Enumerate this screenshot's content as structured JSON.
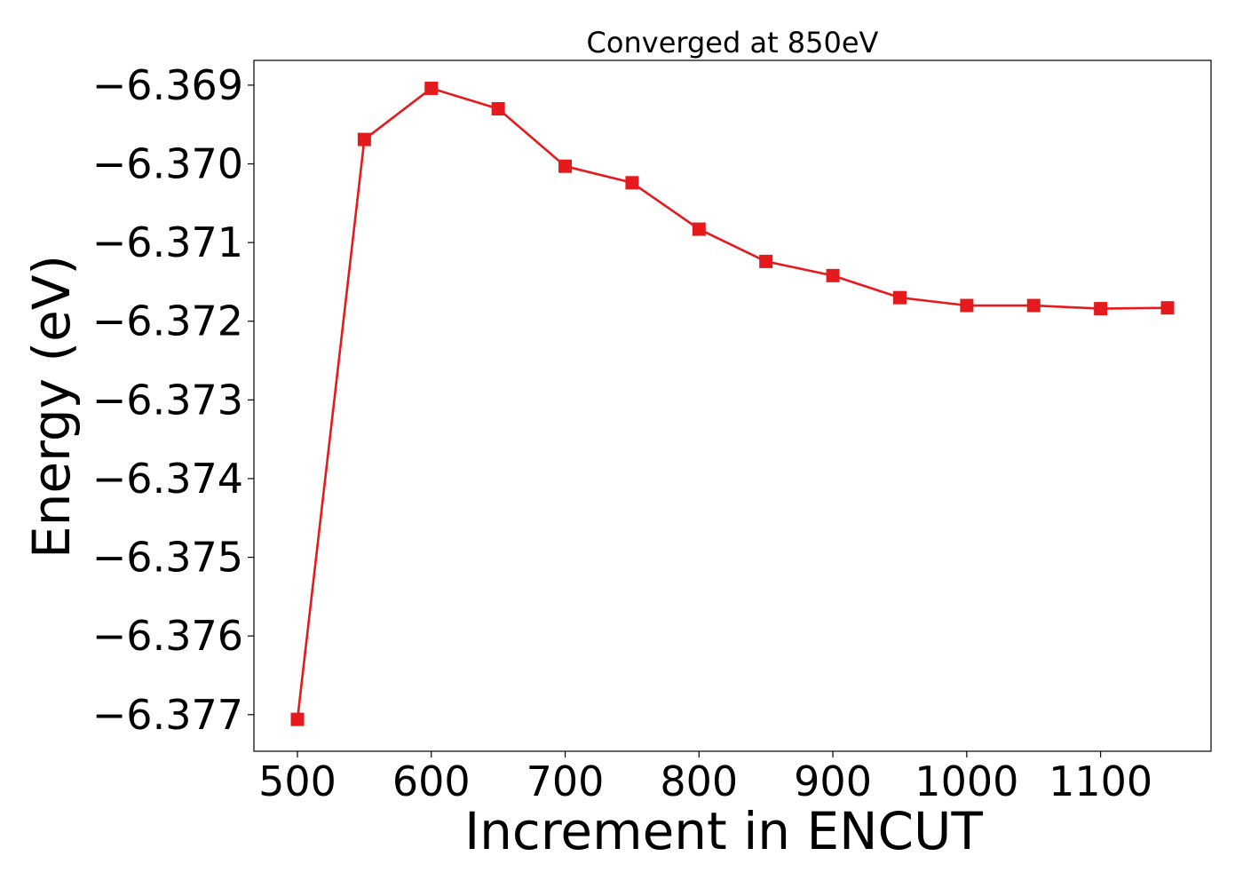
{
  "chart_data": {
    "type": "line",
    "title": "Converged at 850eV",
    "xlabel": "Increment in ENCUT",
    "ylabel": "Energy (eV)",
    "x": [
      500,
      550,
      600,
      650,
      700,
      750,
      800,
      850,
      900,
      950,
      1000,
      1050,
      1100,
      1150
    ],
    "series": [
      {
        "values": [
          -6.37706,
          -6.36969,
          -6.36904,
          -6.3693,
          -6.37003,
          -6.37024,
          -6.37083,
          -6.37124,
          -6.37142,
          -6.3717,
          -6.3718,
          -6.3718,
          -6.37184,
          -6.37183
        ],
        "color": "#e41a1c",
        "marker": "square"
      }
    ],
    "xticks": [
      500,
      600,
      700,
      800,
      900,
      1000,
      1100
    ],
    "xtick_labels": [
      "500",
      "600",
      "700",
      "800",
      "900",
      "1000",
      "1100"
    ],
    "yticks": [
      -6.369,
      -6.37,
      -6.371,
      -6.372,
      -6.373,
      -6.374,
      -6.375,
      -6.376,
      -6.377
    ],
    "ytick_labels": [
      "−6.369",
      "−6.370",
      "−6.371",
      "−6.372",
      "−6.373",
      "−6.374",
      "−6.375",
      "−6.376",
      "−6.377"
    ],
    "xlim": [
      467.5,
      1182.5
    ],
    "ylim": [
      -6.377465,
      -6.368685
    ],
    "grid": false,
    "legend": "none"
  }
}
